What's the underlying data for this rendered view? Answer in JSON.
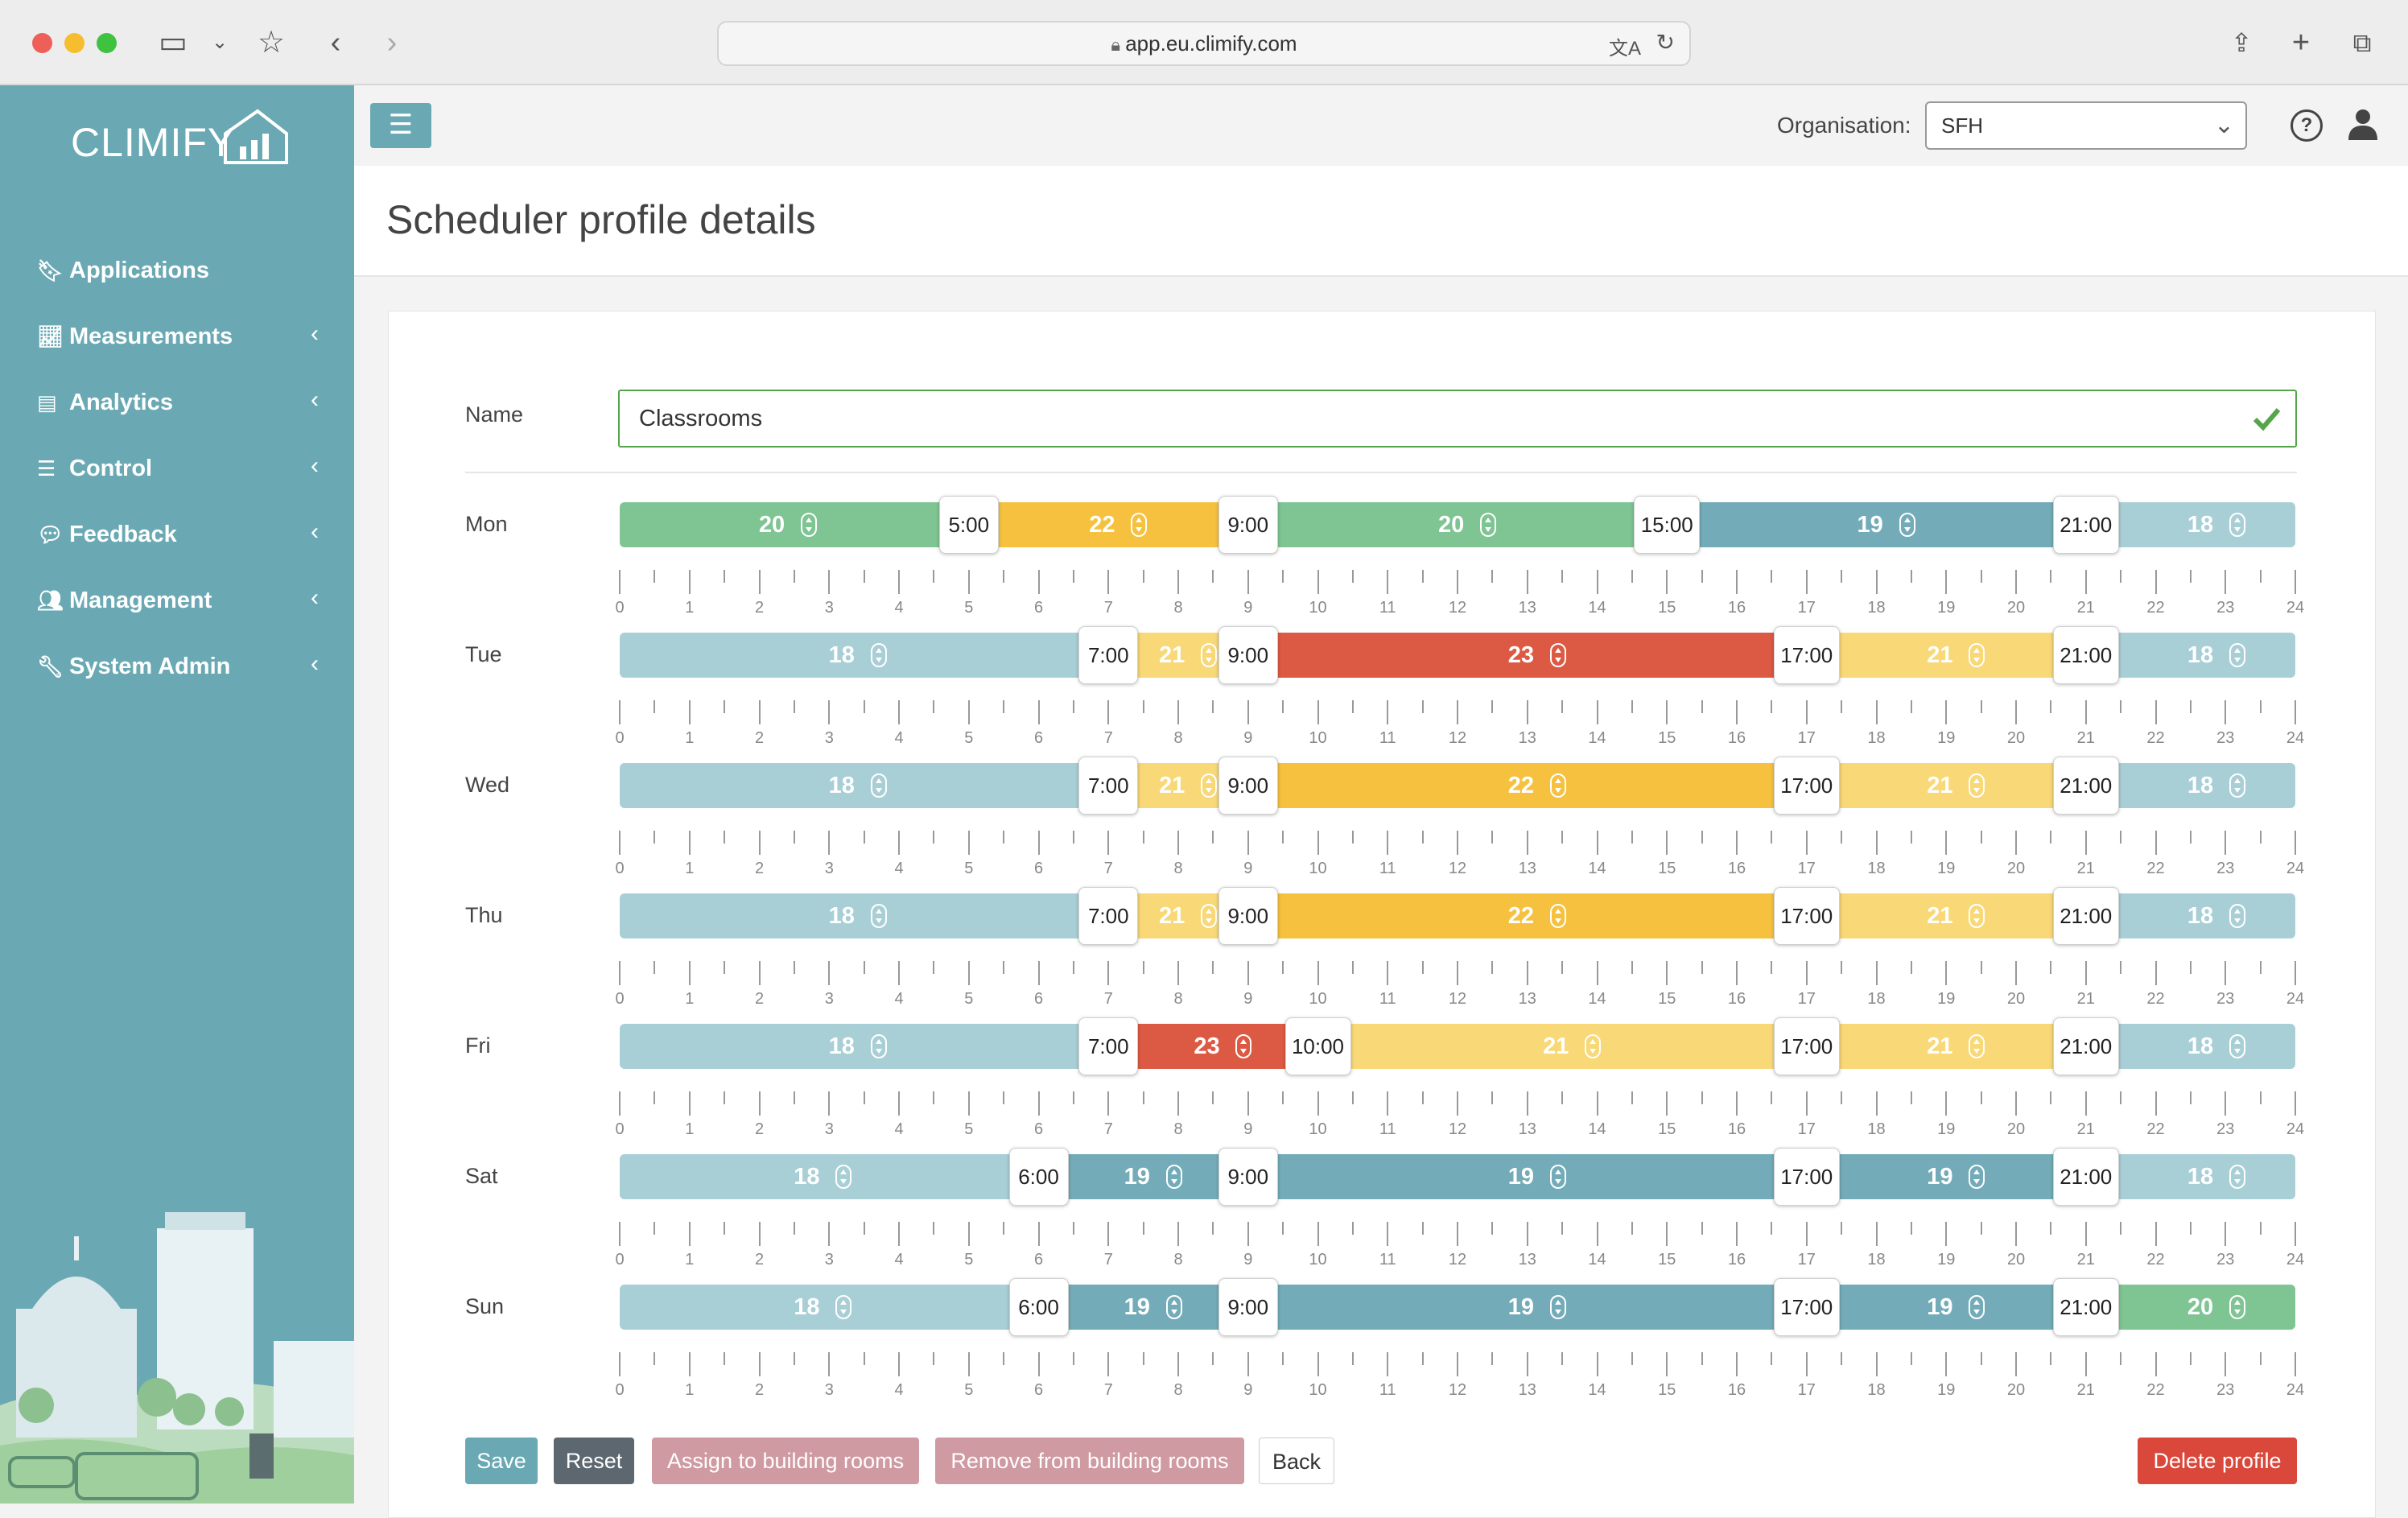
{
  "browser": {
    "url": "app.eu.climify.com"
  },
  "sidebar": {
    "logo": "CLIMIFY",
    "items": [
      {
        "label": "Applications",
        "icon": "bookmark-icon",
        "expandable": false
      },
      {
        "label": "Measurements",
        "icon": "chart-line-icon",
        "expandable": true
      },
      {
        "label": "Analytics",
        "icon": "file-chart-icon",
        "expandable": true
      },
      {
        "label": "Control",
        "icon": "sliders-icon",
        "expandable": true
      },
      {
        "label": "Feedback",
        "icon": "comment-icon",
        "expandable": true
      },
      {
        "label": "Management",
        "icon": "users-gear-icon",
        "expandable": true
      },
      {
        "label": "System Admin",
        "icon": "wrench-icon",
        "expandable": true
      }
    ]
  },
  "topbar": {
    "org_label": "Organisation:",
    "org_value": "SFH"
  },
  "page": {
    "title": "Scheduler profile details"
  },
  "form": {
    "name_label": "Name",
    "name_value": "Classrooms"
  },
  "axis": {
    "min": 0,
    "max": 24,
    "ticks": [
      "0",
      "1",
      "2",
      "3",
      "4",
      "5",
      "6",
      "7",
      "8",
      "9",
      "10",
      "11",
      "12",
      "13",
      "14",
      "15",
      "16",
      "17",
      "18",
      "19",
      "20",
      "21",
      "22",
      "23",
      "24"
    ]
  },
  "temperature_colors": {
    "18": "#a9cfd6",
    "19": "#73acb8",
    "20": "#7fc493",
    "21": "#f8d877",
    "22": "#f5c13f",
    "23": "#dc5a43"
  },
  "schedule": [
    {
      "day": "Mon",
      "segments": [
        {
          "from": 0,
          "to": 5,
          "temp": 20,
          "start_label": ""
        },
        {
          "from": 5,
          "to": 9,
          "temp": 22,
          "start_label": "5:00"
        },
        {
          "from": 9,
          "to": 15,
          "temp": 20,
          "start_label": "9:00"
        },
        {
          "from": 15,
          "to": 21,
          "temp": 19,
          "start_label": "15:00"
        },
        {
          "from": 21,
          "to": 24,
          "temp": 18,
          "start_label": "21:00"
        }
      ]
    },
    {
      "day": "Tue",
      "segments": [
        {
          "from": 0,
          "to": 7,
          "temp": 18,
          "start_label": ""
        },
        {
          "from": 7,
          "to": 9,
          "temp": 21,
          "start_label": "7:00"
        },
        {
          "from": 9,
          "to": 17,
          "temp": 23,
          "start_label": "9:00"
        },
        {
          "from": 17,
          "to": 21,
          "temp": 21,
          "start_label": "17:00"
        },
        {
          "from": 21,
          "to": 24,
          "temp": 18,
          "start_label": "21:00"
        }
      ]
    },
    {
      "day": "Wed",
      "segments": [
        {
          "from": 0,
          "to": 7,
          "temp": 18,
          "start_label": ""
        },
        {
          "from": 7,
          "to": 9,
          "temp": 21,
          "start_label": "7:00"
        },
        {
          "from": 9,
          "to": 17,
          "temp": 22,
          "start_label": "9:00"
        },
        {
          "from": 17,
          "to": 21,
          "temp": 21,
          "start_label": "17:00"
        },
        {
          "from": 21,
          "to": 24,
          "temp": 18,
          "start_label": "21:00"
        }
      ]
    },
    {
      "day": "Thu",
      "segments": [
        {
          "from": 0,
          "to": 7,
          "temp": 18,
          "start_label": ""
        },
        {
          "from": 7,
          "to": 9,
          "temp": 21,
          "start_label": "7:00"
        },
        {
          "from": 9,
          "to": 17,
          "temp": 22,
          "start_label": "9:00"
        },
        {
          "from": 17,
          "to": 21,
          "temp": 21,
          "start_label": "17:00"
        },
        {
          "from": 21,
          "to": 24,
          "temp": 18,
          "start_label": "21:00"
        }
      ]
    },
    {
      "day": "Fri",
      "segments": [
        {
          "from": 0,
          "to": 7,
          "temp": 18,
          "start_label": ""
        },
        {
          "from": 7,
          "to": 10,
          "temp": 23,
          "start_label": "7:00"
        },
        {
          "from": 10,
          "to": 17,
          "temp": 21,
          "start_label": "10:00"
        },
        {
          "from": 17,
          "to": 21,
          "temp": 21,
          "start_label": "17:00"
        },
        {
          "from": 21,
          "to": 24,
          "temp": 18,
          "start_label": "21:00"
        }
      ]
    },
    {
      "day": "Sat",
      "segments": [
        {
          "from": 0,
          "to": 6,
          "temp": 18,
          "start_label": ""
        },
        {
          "from": 6,
          "to": 9,
          "temp": 19,
          "start_label": "6:00"
        },
        {
          "from": 9,
          "to": 17,
          "temp": 19,
          "start_label": "9:00"
        },
        {
          "from": 17,
          "to": 21,
          "temp": 19,
          "start_label": "17:00"
        },
        {
          "from": 21,
          "to": 24,
          "temp": 18,
          "start_label": "21:00"
        }
      ]
    },
    {
      "day": "Sun",
      "segments": [
        {
          "from": 0,
          "to": 6,
          "temp": 18,
          "start_label": ""
        },
        {
          "from": 6,
          "to": 9,
          "temp": 19,
          "start_label": "6:00"
        },
        {
          "from": 9,
          "to": 17,
          "temp": 19,
          "start_label": "9:00"
        },
        {
          "from": 17,
          "to": 21,
          "temp": 19,
          "start_label": "17:00"
        },
        {
          "from": 21,
          "to": 24,
          "temp": 20,
          "start_label": "21:00"
        }
      ]
    }
  ],
  "buttons": {
    "save": "Save",
    "reset": "Reset",
    "assign": "Assign to building rooms",
    "remove": "Remove from building rooms",
    "back": "Back",
    "delete": "Delete profile"
  },
  "button_colors": {
    "save": "#6aa9b4",
    "reset": "#5d6770",
    "assign": "#cf9aa2",
    "remove": "#cf9aa2",
    "delete": "#d9483b"
  }
}
